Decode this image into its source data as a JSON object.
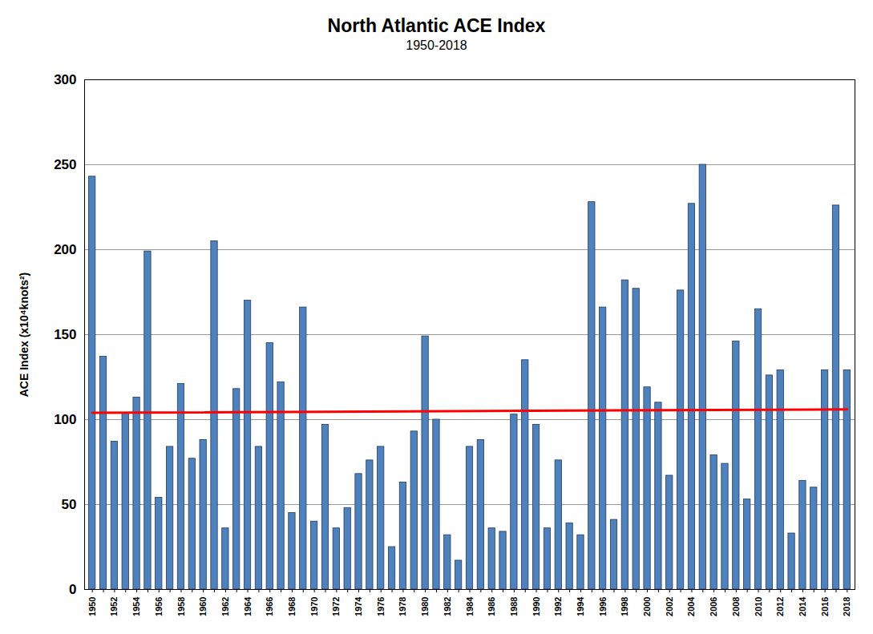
{
  "chart_data": {
    "type": "bar",
    "title": "North Atlantic ACE Index",
    "subtitle": "1950-2018",
    "y_label": "ACE Index (x10⁴knots²)",
    "categories": [
      "1950",
      null,
      "1952",
      null,
      "1954",
      null,
      "1956",
      null,
      "1958",
      null,
      "1960",
      null,
      "1962",
      null,
      "1964",
      null,
      "1966",
      null,
      "1968",
      null,
      "1970",
      null,
      "1972",
      null,
      "1974",
      null,
      "1976",
      null,
      "1978",
      null,
      "1980",
      null,
      "1982",
      null,
      "1984",
      null,
      "1986",
      null,
      "1988",
      null,
      "1990",
      null,
      "1992",
      null,
      "1994",
      null,
      "1996",
      null,
      "1998",
      null,
      "2000",
      null,
      "2002",
      null,
      "2004",
      null,
      "2006",
      null,
      "2008",
      null,
      "2010",
      null,
      "2012",
      null,
      "2014",
      null,
      "2016",
      null,
      "2018"
    ],
    "values": [
      243,
      137,
      87,
      104,
      113,
      199,
      54,
      84,
      121,
      77,
      88,
      205,
      36,
      118,
      170,
      84,
      145,
      122,
      45,
      166,
      40,
      97,
      36,
      48,
      68,
      76,
      84,
      25,
      63,
      93,
      149,
      100,
      32,
      17,
      84,
      88,
      36,
      34,
      103,
      135,
      97,
      36,
      76,
      39,
      32,
      228,
      166,
      41,
      182,
      177,
      119,
      110,
      67,
      176,
      227,
      250,
      79,
      74,
      146,
      53,
      165,
      126,
      129,
      33,
      64,
      60,
      129,
      226,
      129
    ],
    "color": "#4f81bd",
    "trend_line": {
      "values": [
        104,
        106
      ],
      "color": "#ff0000"
    },
    "ylim": [
      0,
      300
    ],
    "yticks": [
      0,
      50,
      100,
      150,
      200,
      250,
      300
    ],
    "grid": true
  }
}
